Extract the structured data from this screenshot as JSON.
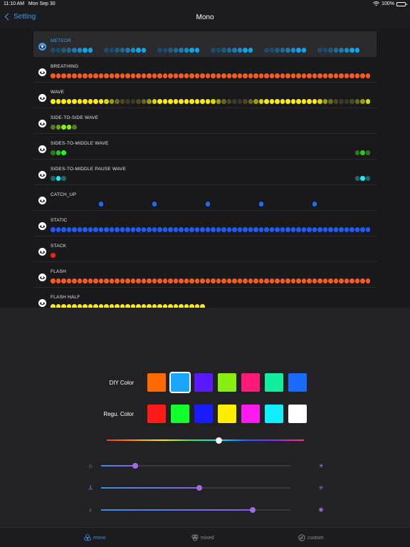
{
  "status_bar": {
    "time": "11:10 AM",
    "date": "Mon Sep 30",
    "battery": "100%",
    "wifi_icon": "wifi-icon",
    "battery_icon": "battery-icon"
  },
  "nav": {
    "back_label": "Setting",
    "title": "Mono"
  },
  "effects": [
    {
      "name": "METEOR",
      "selected": true,
      "pattern": "meteor"
    },
    {
      "name": "BREATHING",
      "selected": false,
      "pattern": "solid",
      "color": "#ff5a1a"
    },
    {
      "name": "WAVE",
      "selected": false,
      "pattern": "wave"
    },
    {
      "name": "SIDE-TO-SIDE WAVE",
      "selected": false,
      "pattern": "side"
    },
    {
      "name": "SIDES-TO-MIDDLE WAVE",
      "selected": false,
      "pattern": "sides_green"
    },
    {
      "name": "SIDES-TO-MIDDLE PAUSE WAVE",
      "selected": false,
      "pattern": "sides_cyan"
    },
    {
      "name": "CATCH_UP",
      "selected": false,
      "pattern": "catchup",
      "color": "#1e6bff"
    },
    {
      "name": "STATIC",
      "selected": false,
      "pattern": "solid",
      "color": "#1e5bff"
    },
    {
      "name": "STACK",
      "selected": false,
      "pattern": "stack",
      "color": "#ff1a1a"
    },
    {
      "name": "FLASH",
      "selected": false,
      "pattern": "solid",
      "color": "#ff5a1a"
    },
    {
      "name": "FLASH HALF",
      "selected": false,
      "pattern": "half",
      "color": "#ffee00"
    }
  ],
  "diy": {
    "label": "DIY Color",
    "colors": [
      "#ff6a00",
      "#1aa6ff",
      "#5a1aff",
      "#88ee11",
      "#ff1a7a",
      "#11eea0",
      "#1a6aff"
    ],
    "selected_index": 1
  },
  "regular": {
    "label": "Regu. Color",
    "colors": [
      "#ff1a1a",
      "#11ff2a",
      "#1a1aff",
      "#ffee00",
      "#ff1aee",
      "#11eeff",
      "#ffffff"
    ]
  },
  "hue_slider": {
    "value": 0.57
  },
  "sliders": [
    {
      "name": "brightness",
      "left_icon": "sun-dim-icon",
      "right_icon": "sun-bright-icon",
      "value": 0.18
    },
    {
      "name": "speed",
      "left_icon": "fan-slow-icon",
      "right_icon": "fan-fast-icon",
      "value": 0.52
    },
    {
      "name": "light",
      "left_icon": "bulb-dim-icon",
      "right_icon": "bulb-bright-icon",
      "value": 0.8
    }
  ],
  "tabs": [
    {
      "label": "mono",
      "icon": "mono-icon",
      "active": true
    },
    {
      "label": "mixed",
      "icon": "mixed-icon",
      "active": false
    },
    {
      "label": "custom",
      "icon": "custom-icon",
      "active": false
    }
  ]
}
